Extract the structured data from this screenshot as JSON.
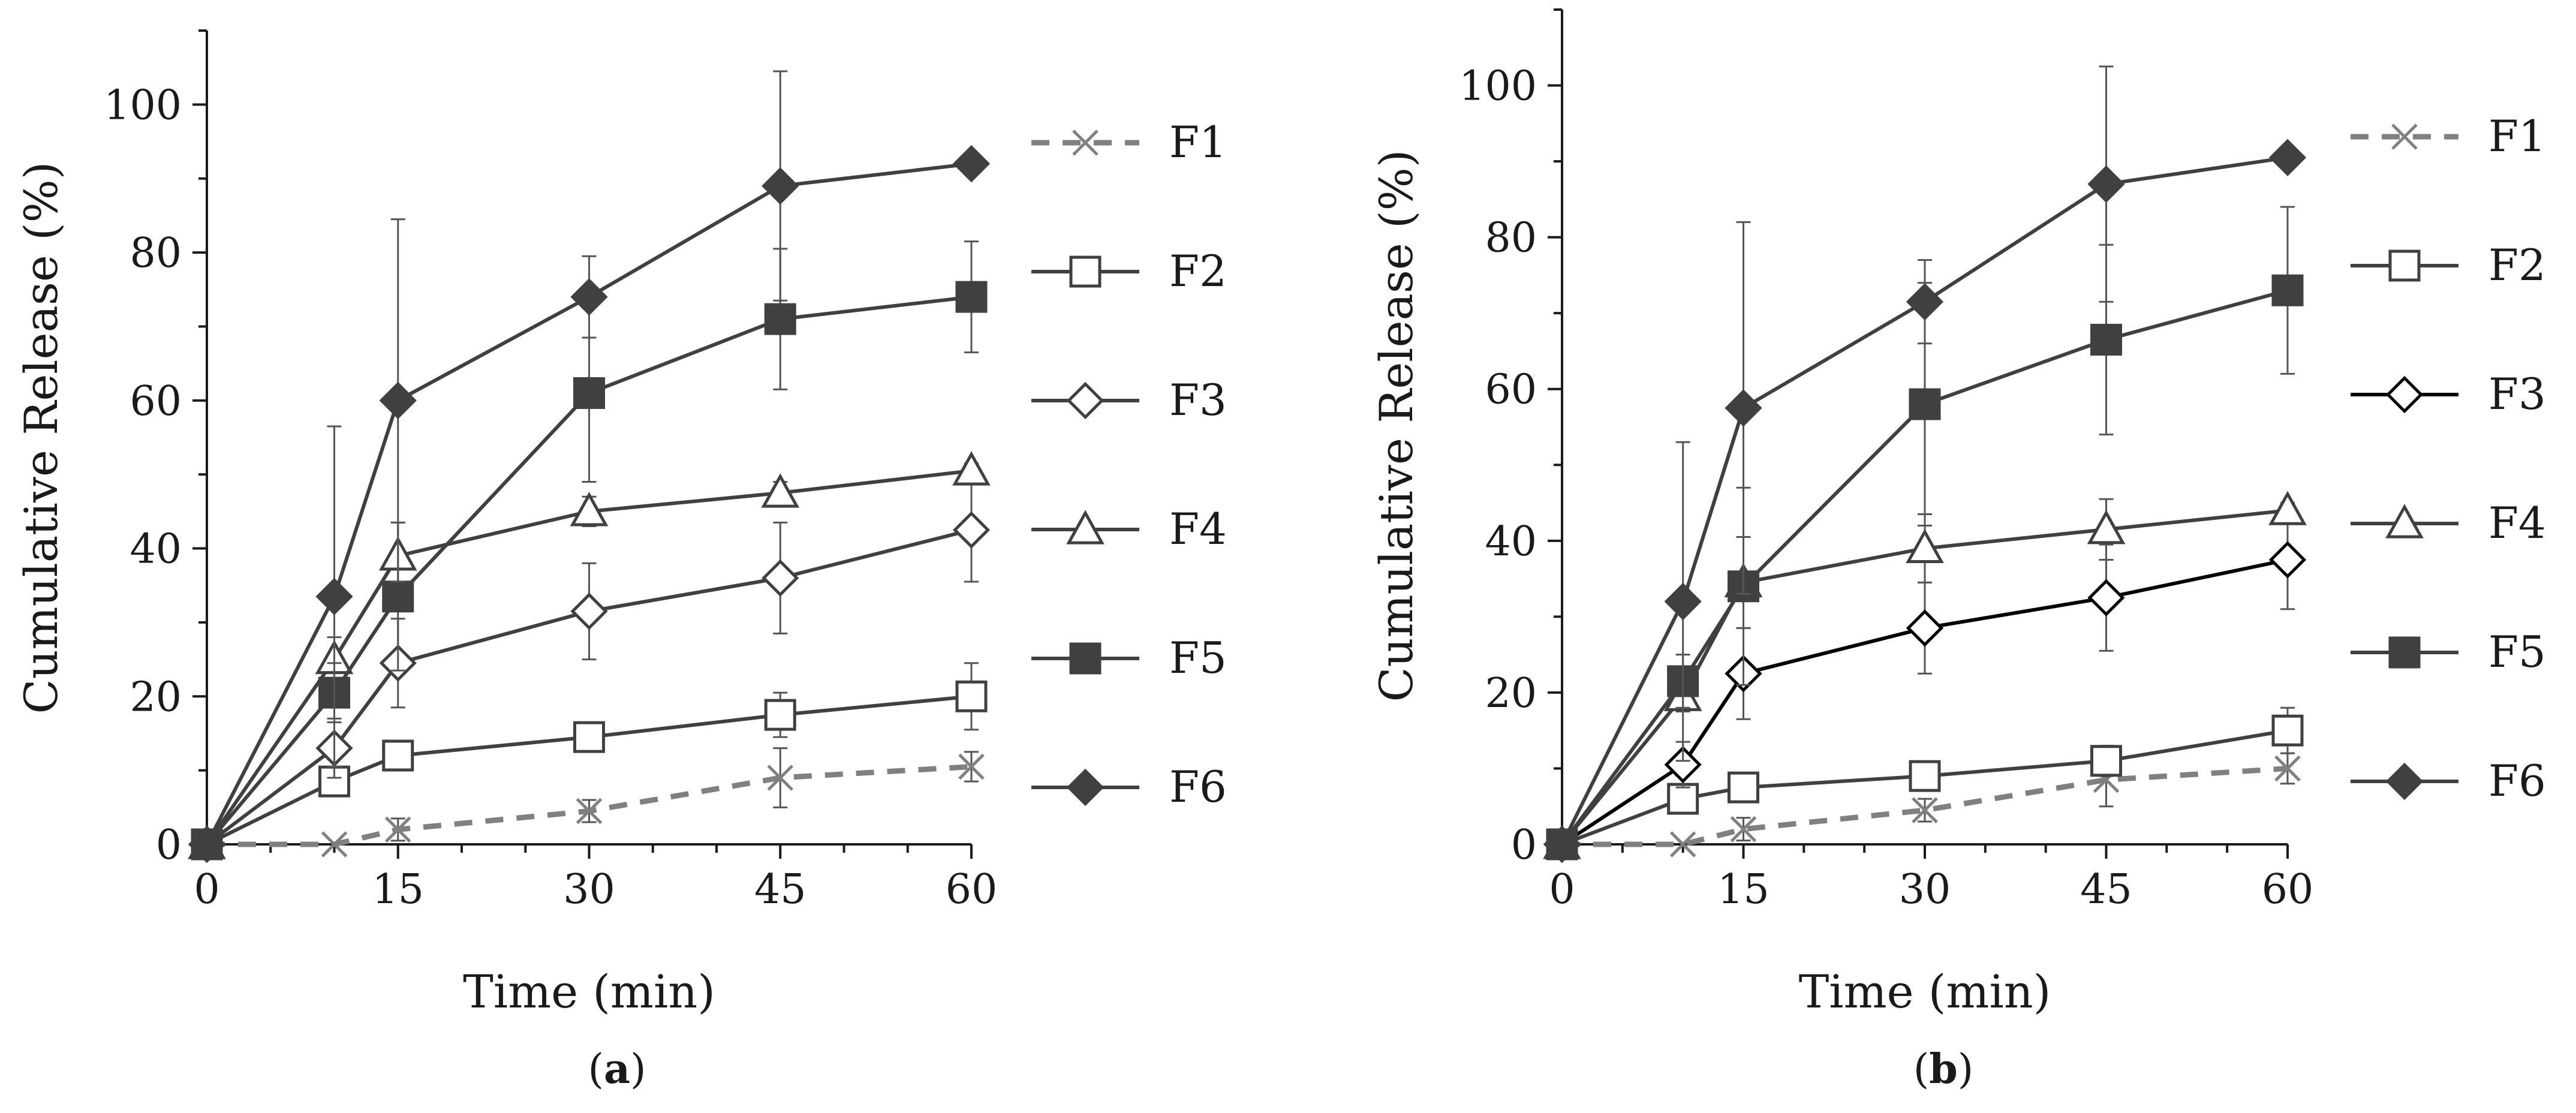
{
  "chart_data": [
    {
      "type": "line",
      "panel": "a",
      "xlabel": "Time (min)",
      "ylabel": "Cumulative Release (%)",
      "xlim": [
        0,
        60
      ],
      "ylim": [
        0,
        110
      ],
      "xticks": [
        0,
        15,
        30,
        45,
        60
      ],
      "yticks": [
        0,
        20,
        40,
        60,
        80,
        100
      ],
      "grid": false,
      "legend_position": "right",
      "series": [
        {
          "name": "F1",
          "marker": "x",
          "line": "dashed",
          "color": "#808080",
          "x": [
            0,
            10,
            15,
            30,
            45,
            60
          ],
          "values": [
            0,
            0,
            2,
            4.5,
            9,
            10.5
          ],
          "err": [
            0,
            0,
            1.5,
            1.5,
            4,
            2
          ]
        },
        {
          "name": "F2",
          "marker": "square-open",
          "line": "solid",
          "color": "#404040",
          "x": [
            0,
            10,
            15,
            30,
            45,
            60
          ],
          "values": [
            0,
            8.5,
            12,
            14.5,
            17.5,
            20
          ],
          "err": [
            0,
            2,
            2,
            2,
            3,
            4.5
          ]
        },
        {
          "name": "F3",
          "marker": "diamond-open",
          "line": "solid",
          "color": "#404040",
          "x": [
            0,
            10,
            15,
            30,
            45,
            60
          ],
          "values": [
            0,
            13,
            24.5,
            31.5,
            36,
            42.5
          ],
          "err": [
            0,
            4,
            6,
            6.5,
            7.5,
            7
          ]
        },
        {
          "name": "F4",
          "marker": "triangle-open",
          "line": "solid",
          "color": "#404040",
          "x": [
            0,
            10,
            15,
            30,
            45,
            60
          ],
          "values": [
            0,
            25,
            39,
            45,
            47.5,
            50.5
          ],
          "err": [
            0,
            3,
            4.5,
            2,
            1.5,
            1
          ]
        },
        {
          "name": "F5",
          "marker": "square-filled",
          "line": "solid",
          "color": "#404040",
          "x": [
            0,
            10,
            15,
            30,
            45,
            60
          ],
          "values": [
            0,
            20.5,
            33.5,
            61,
            71,
            74
          ],
          "err": [
            0,
            4,
            10,
            12,
            9.5,
            7.5
          ]
        },
        {
          "name": "F6",
          "marker": "diamond-filled",
          "line": "solid",
          "color": "#404040",
          "x": [
            0,
            10,
            15,
            30,
            45,
            60
          ],
          "values": [
            0,
            33.5,
            60,
            74,
            89,
            92
          ],
          "err": [
            0,
            23,
            24.5,
            5.5,
            15.5,
            0
          ]
        }
      ]
    },
    {
      "type": "line",
      "panel": "b",
      "xlabel": "Time (min)",
      "ylabel": "Cumulative Release (%)",
      "xlim": [
        0,
        60
      ],
      "ylim": [
        0,
        110
      ],
      "xticks": [
        0,
        15,
        30,
        45,
        60
      ],
      "yticks": [
        0,
        20,
        40,
        60,
        80,
        100
      ],
      "grid": false,
      "legend_position": "right",
      "series": [
        {
          "name": "F1",
          "marker": "x",
          "line": "dashed",
          "color": "#808080",
          "x": [
            0,
            10,
            15,
            30,
            45,
            60
          ],
          "values": [
            0,
            0,
            2,
            4.5,
            8.5,
            10
          ],
          "err": [
            0,
            0,
            1.5,
            1.5,
            3.5,
            2
          ]
        },
        {
          "name": "F2",
          "marker": "square-open",
          "line": "solid",
          "color": "#404040",
          "x": [
            0,
            10,
            15,
            30,
            45,
            60
          ],
          "values": [
            0,
            6,
            7.5,
            9,
            11,
            15
          ],
          "err": [
            0,
            1.5,
            1.5,
            1.5,
            2,
            3
          ]
        },
        {
          "name": "F3",
          "marker": "diamond-open",
          "line": "solid",
          "color": "#000000",
          "x": [
            0,
            10,
            15,
            30,
            45,
            60
          ],
          "values": [
            0,
            10.5,
            22.5,
            28.5,
            32.5,
            37.5
          ],
          "err": [
            0,
            3,
            6,
            6,
            7,
            6.5
          ]
        },
        {
          "name": "F4",
          "marker": "triangle-open",
          "line": "solid",
          "color": "#404040",
          "x": [
            0,
            10,
            15,
            30,
            45,
            60
          ],
          "values": [
            0,
            19.5,
            34.5,
            39,
            41.5,
            44
          ],
          "err": [
            0,
            2,
            6,
            4.5,
            4,
            1
          ]
        },
        {
          "name": "F5",
          "marker": "square-filled",
          "line": "solid",
          "color": "#404040",
          "x": [
            0,
            10,
            15,
            30,
            45,
            60
          ],
          "values": [
            0,
            21.5,
            34,
            58,
            66.5,
            73
          ],
          "err": [
            0,
            3.5,
            13,
            16,
            12.5,
            11
          ]
        },
        {
          "name": "F6",
          "marker": "diamond-filled",
          "line": "solid",
          "color": "#404040",
          "x": [
            0,
            10,
            15,
            30,
            45,
            60
          ],
          "values": [
            0,
            32,
            57.5,
            71.5,
            87,
            90.5
          ],
          "err": [
            0,
            21,
            24.5,
            5.5,
            15.5,
            0
          ]
        }
      ]
    }
  ],
  "captions": {
    "a": "a",
    "b": "b"
  },
  "style": {
    "axis_color": "#1a1a1a",
    "line_color": "#404040",
    "f1_color": "#808080",
    "errbar_color": "#555555"
  }
}
